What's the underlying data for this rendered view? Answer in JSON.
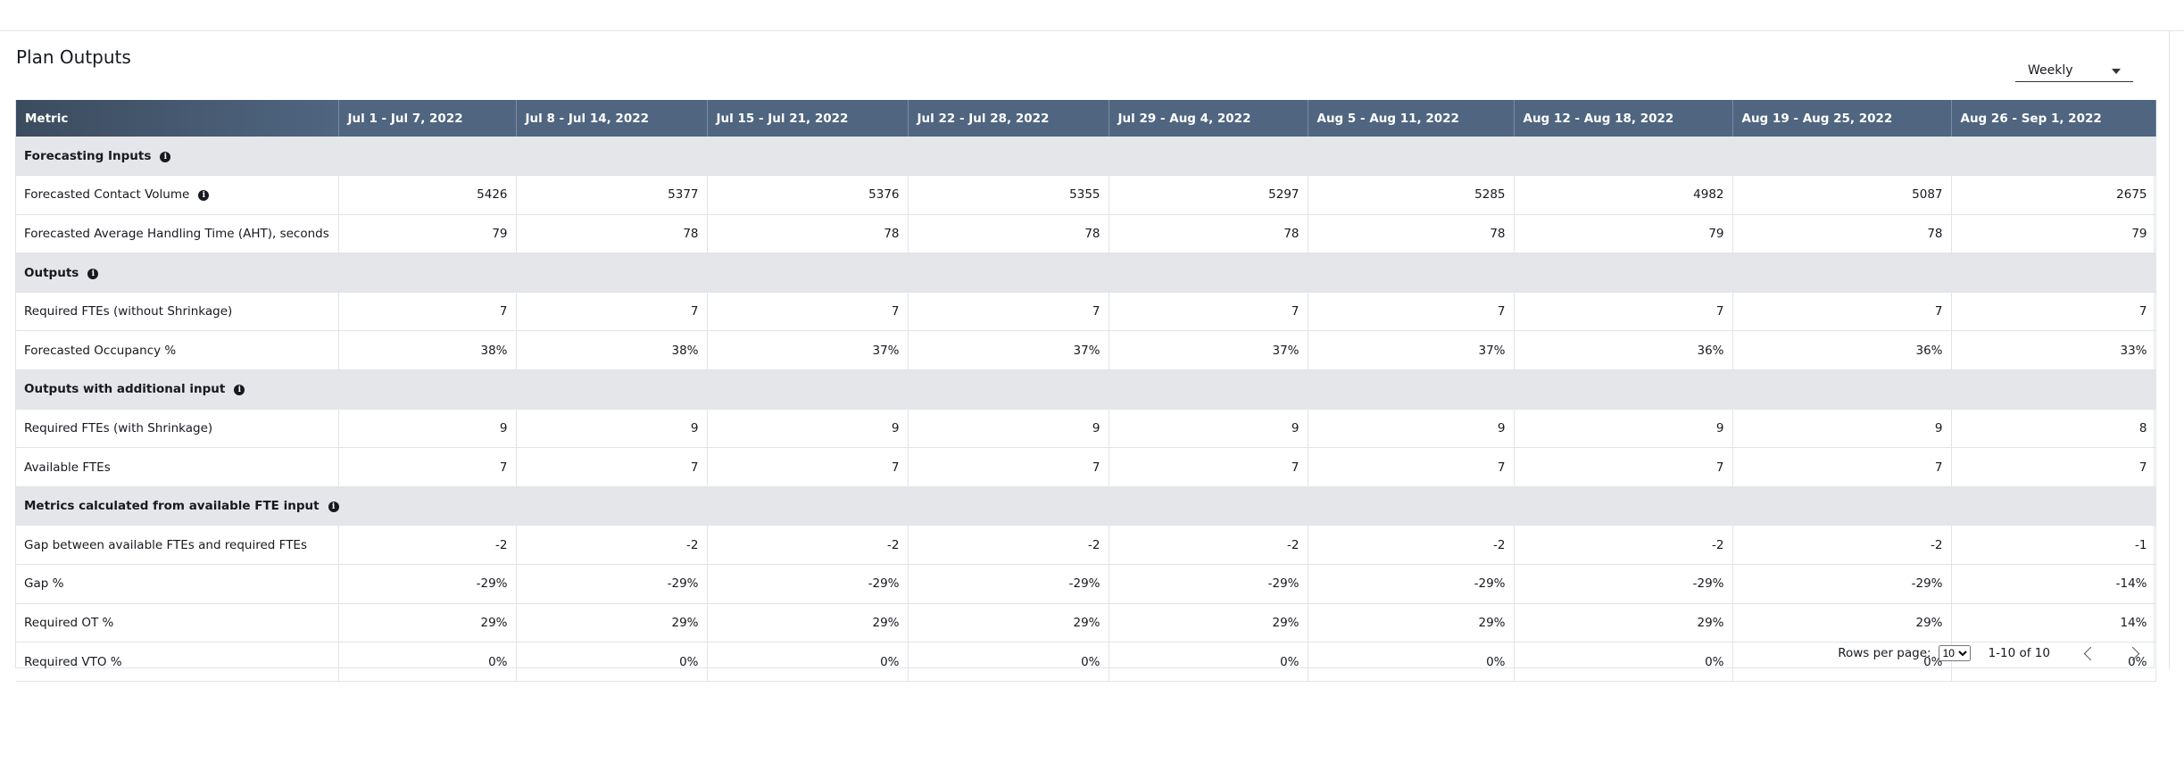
{
  "header": {
    "title": "Plan Outputs",
    "period": "Weekly"
  },
  "table": {
    "columns": [
      "Metric",
      "Jul 1 - Jul 7, 2022",
      "Jul 8 - Jul 14, 2022",
      "Jul 15 - Jul 21, 2022",
      "Jul 22 - Jul 28, 2022",
      "Jul 29 - Aug 4, 2022",
      "Aug 5 - Aug 11, 2022",
      "Aug 12 - Aug 18, 2022",
      "Aug 19 - Aug 25, 2022",
      "Aug 26 - Sep 1, 2022"
    ],
    "rows": [
      {
        "section": "Forecasting Inputs",
        "info": true
      },
      {
        "label": "Forecasted Contact Volume",
        "info": true,
        "values": [
          5426,
          5377,
          5376,
          5355,
          5297,
          5285,
          4982,
          5087,
          2675
        ]
      },
      {
        "label": "Forecasted Average Handling Time (AHT), seconds",
        "values": [
          79,
          78,
          78,
          78,
          78,
          78,
          79,
          78,
          79
        ]
      },
      {
        "section": "Outputs",
        "info": true
      },
      {
        "label": "Required FTEs (without Shrinkage)",
        "values": [
          7,
          7,
          7,
          7,
          7,
          7,
          7,
          7,
          7
        ]
      },
      {
        "label": "Forecasted Occupancy %",
        "values": [
          "38%",
          "38%",
          "37%",
          "37%",
          "37%",
          "37%",
          "36%",
          "36%",
          "33%"
        ]
      },
      {
        "section": "Outputs with additional input",
        "info": true
      },
      {
        "label": "Required FTEs (with Shrinkage)",
        "values": [
          9,
          9,
          9,
          9,
          9,
          9,
          9,
          9,
          8
        ]
      },
      {
        "label": "Available FTEs",
        "values": [
          7,
          7,
          7,
          7,
          7,
          7,
          7,
          7,
          7
        ]
      },
      {
        "section": "Metrics calculated from available FTE input",
        "info": true
      },
      {
        "label": "Gap between available FTEs and required FTEs",
        "values": [
          -2,
          -2,
          -2,
          -2,
          -2,
          -2,
          -2,
          -2,
          -1
        ]
      },
      {
        "label": "Gap %",
        "values": [
          "-29%",
          "-29%",
          "-29%",
          "-29%",
          "-29%",
          "-29%",
          "-29%",
          "-29%",
          "-14%"
        ]
      },
      {
        "label": "Required OT %",
        "values": [
          "29%",
          "29%",
          "29%",
          "29%",
          "29%",
          "29%",
          "29%",
          "29%",
          "14%"
        ]
      },
      {
        "label": "Required VTO %",
        "values": [
          "0%",
          "0%",
          "0%",
          "0%",
          "0%",
          "0%",
          "0%",
          "0%",
          "0%"
        ]
      }
    ]
  },
  "footer": {
    "rows_per_page_label": "Rows per page:",
    "rows_per_page": 10,
    "range": "1-10 of 10"
  }
}
